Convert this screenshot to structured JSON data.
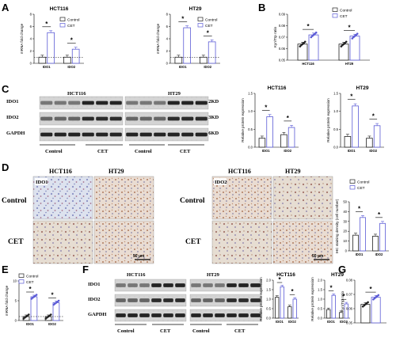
{
  "panels": {
    "A": "A",
    "B": "B",
    "C": "C",
    "D": "D",
    "E": "E",
    "F": "F",
    "G": "G"
  },
  "legend": {
    "control": "Control",
    "cet": "CET",
    "colors": {
      "control": "#222222",
      "cet": "#5b5bd6"
    }
  },
  "sig_marker": "*",
  "panel_c": {
    "cell_titles": [
      "HCT116",
      "HT29"
    ],
    "row_labels": [
      "IDO1",
      "IDO2",
      "GAPDH"
    ],
    "kd_labels": [
      "42KD",
      "43KD",
      "36KD"
    ],
    "group_labels": [
      "Control",
      "CET",
      "Control",
      "CET"
    ]
  },
  "panel_d": {
    "cell_titles": [
      "HCT116",
      "HT29",
      "HCT116",
      "HT29"
    ],
    "row_labels": [
      "Control",
      "CET",
      "Control",
      "CET"
    ],
    "markers": [
      "IDO1",
      "IDO2"
    ],
    "scale_bar": "50 μm"
  },
  "panel_f": {
    "cell_titles": [
      "HCT116",
      "HT29"
    ],
    "row_labels": [
      "IDO1",
      "IDO2",
      "GAPDH"
    ],
    "group_labels": [
      "Control",
      "CET",
      "Control",
      "CET"
    ]
  },
  "chart_data": [
    {
      "id": "A1",
      "type": "bar",
      "title": "HCT116",
      "ylabel": "mRNA fold change",
      "categories": [
        "IDO1",
        "IDO2"
      ],
      "ylim": [
        0,
        8
      ],
      "yticks": [
        "0",
        "2",
        "4",
        "6",
        "8"
      ],
      "series": [
        {
          "name": "Control",
          "values": [
            1.0,
            1.0
          ]
        },
        {
          "name": "CET",
          "values": [
            5.0,
            2.3
          ]
        }
      ]
    },
    {
      "id": "A2",
      "type": "bar",
      "title": "HT29",
      "ylabel": "mRNA fold change",
      "categories": [
        "IDO1",
        "IDO2"
      ],
      "ylim": [
        0,
        8
      ],
      "yticks": [
        "0",
        "2",
        "4",
        "6",
        "8"
      ],
      "series": [
        {
          "name": "Control",
          "values": [
            1.0,
            1.0
          ]
        },
        {
          "name": "CET",
          "values": [
            5.8,
            3.5
          ]
        }
      ]
    },
    {
      "id": "B",
      "type": "bar",
      "title": "",
      "ylabel": "Kyn/Trp ratio",
      "categories": [
        "HCT116",
        "HT29"
      ],
      "ylim": [
        0.05,
        0.09
      ],
      "yticks": [
        "0.05",
        "0.06",
        "0.07",
        "0.08",
        "0.09"
      ],
      "series": [
        {
          "name": "Control",
          "values": [
            0.064,
            0.064
          ]
        },
        {
          "name": "CET",
          "values": [
            0.072,
            0.071
          ]
        }
      ]
    },
    {
      "id": "C1",
      "type": "bar",
      "title": "HCT116",
      "ylabel": "Relative protein expression",
      "categories": [
        "IDO1",
        "IDO2"
      ],
      "ylim": [
        0,
        1.5
      ],
      "yticks": [
        "0.0",
        "0.5",
        "1.0",
        "1.5"
      ],
      "series": [
        {
          "name": "Control",
          "values": [
            0.25,
            0.35
          ]
        },
        {
          "name": "CET",
          "values": [
            0.85,
            0.55
          ]
        }
      ]
    },
    {
      "id": "C2",
      "type": "bar",
      "title": "HT29",
      "ylabel": "Relative protein expression",
      "categories": [
        "IDO1",
        "IDO2"
      ],
      "ylim": [
        0,
        1.5
      ],
      "yticks": [
        "0.0",
        "0.5",
        "1.0",
        "1.5"
      ],
      "series": [
        {
          "name": "Control",
          "values": [
            0.3,
            0.25
          ]
        },
        {
          "name": "CET",
          "values": [
            1.15,
            0.6
          ]
        }
      ]
    },
    {
      "id": "D",
      "type": "bar",
      "title": "",
      "ylabel": "IHC staining density (cell number)",
      "categories": [
        "IDO1",
        "IDO2"
      ],
      "ylim": [
        0,
        50
      ],
      "yticks": [
        "0",
        "10",
        "20",
        "30",
        "40",
        "50"
      ],
      "series": [
        {
          "name": "Control",
          "values": [
            16,
            15
          ]
        },
        {
          "name": "CET",
          "values": [
            34,
            28
          ]
        }
      ]
    },
    {
      "id": "E",
      "type": "bar",
      "title": "",
      "ylabel": "mRNA fold change",
      "categories": [
        "IDO1",
        "IDO2"
      ],
      "ylim": [
        0,
        10
      ],
      "yticks": [
        "0",
        "5",
        "10"
      ],
      "series": [
        {
          "name": "Control",
          "values": [
            1.0,
            1.0
          ]
        },
        {
          "name": "CET",
          "values": [
            6.0,
            4.5
          ]
        }
      ]
    },
    {
      "id": "F1",
      "type": "bar",
      "title": "HCT116",
      "ylabel": "Relative protein expression",
      "categories": [
        "IDO1",
        "IDO2"
      ],
      "ylim": [
        0,
        2.0
      ],
      "yticks": [
        "0.0",
        "0.5",
        "1.0",
        "1.5",
        "2.0"
      ],
      "series": [
        {
          "name": "Control",
          "values": [
            1.1,
            0.6
          ]
        },
        {
          "name": "CET",
          "values": [
            1.65,
            1.0
          ]
        }
      ]
    },
    {
      "id": "F2",
      "type": "bar",
      "title": "HT29",
      "ylabel": "Relative protein expression",
      "categories": [
        "IDO1",
        "IDO2"
      ],
      "ylim": [
        0,
        2.0
      ],
      "yticks": [
        "0.0",
        "0.5",
        "1.0",
        "1.5",
        "2.0"
      ],
      "series": [
        {
          "name": "Control",
          "values": [
            0.45,
            0.3
          ]
        },
        {
          "name": "CET",
          "values": [
            1.2,
            0.75
          ]
        }
      ]
    },
    {
      "id": "G",
      "type": "bar",
      "title": "",
      "ylabel": "Kyn/Trp ratio",
      "categories": [
        ""
      ],
      "ylim": [
        0.05,
        0.08
      ],
      "yticks": [
        "0.05",
        "0.06",
        "0.07",
        "0.08"
      ],
      "series": [
        {
          "name": "Control",
          "values": [
            0.063
          ]
        },
        {
          "name": "CET",
          "values": [
            0.068
          ]
        }
      ]
    }
  ]
}
